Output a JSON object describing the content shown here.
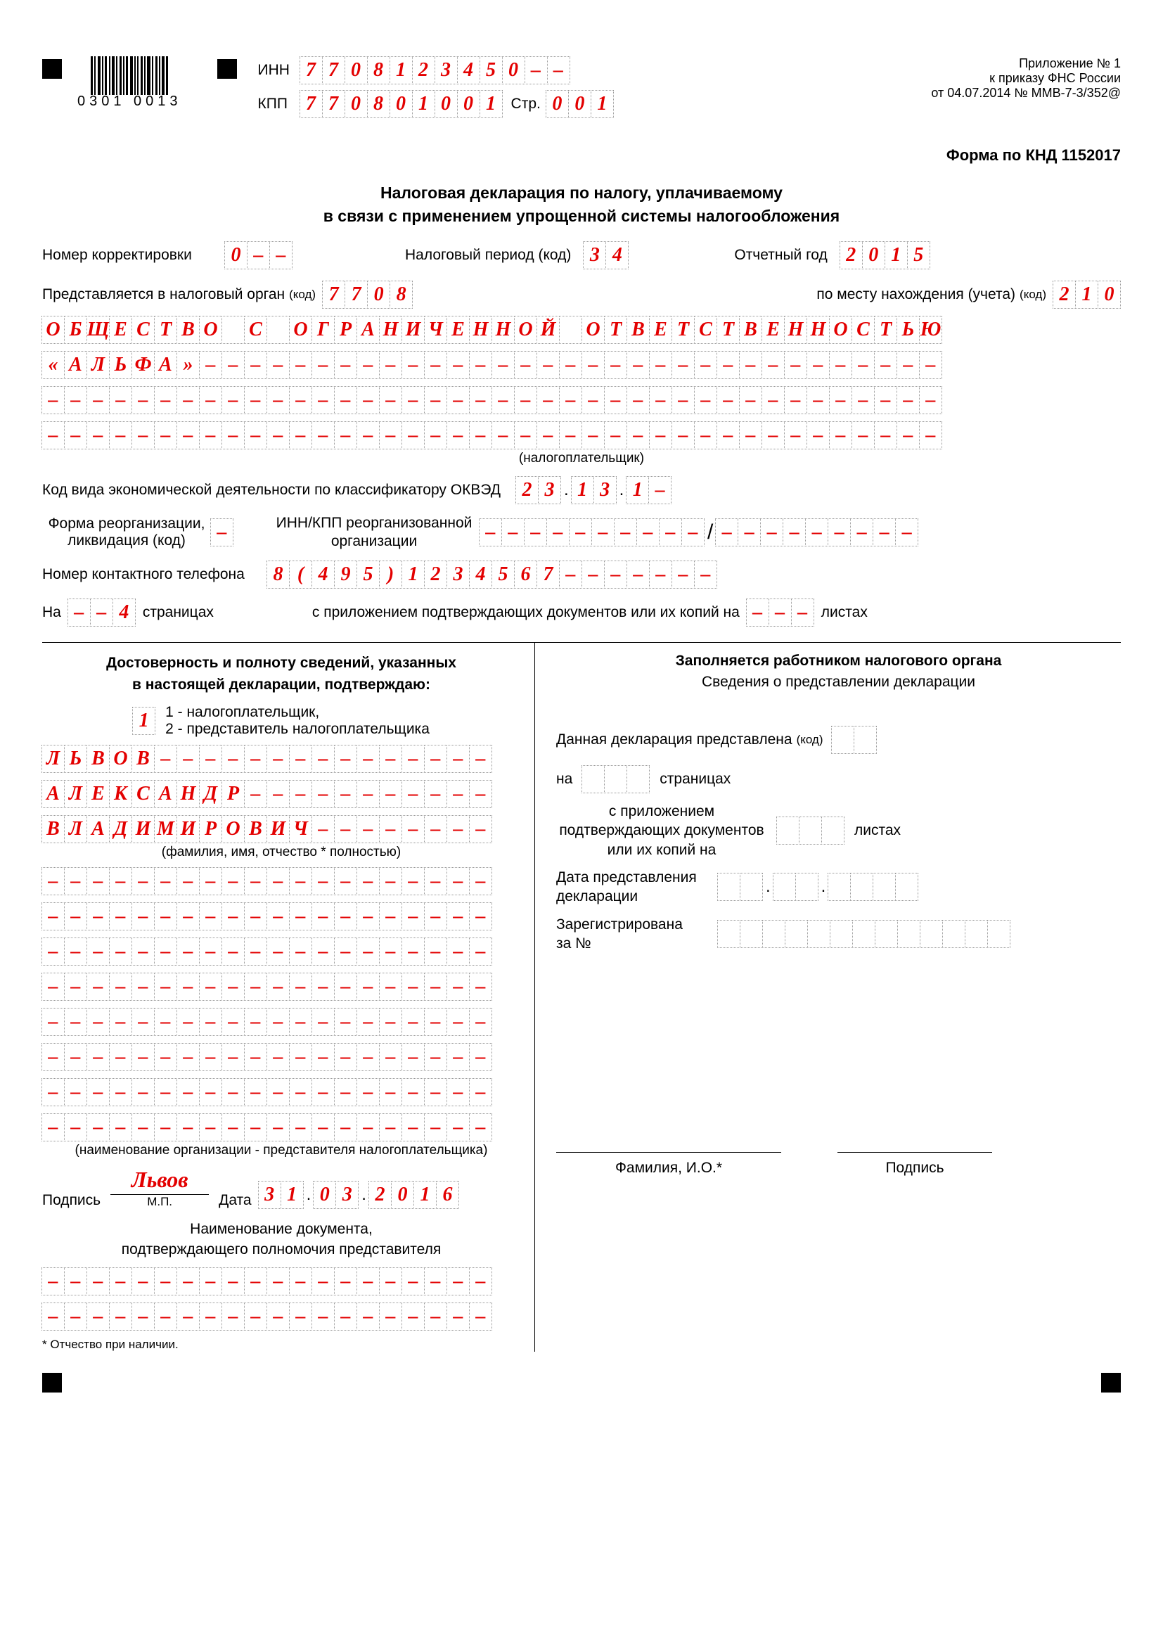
{
  "colors": {
    "red": "#e30000",
    "black": "#000000",
    "dashGray": "#999999"
  },
  "cell": {
    "width": 33,
    "height": 40,
    "borderStyle": "dotted",
    "font": "Times New Roman italic bold 28px"
  },
  "header": {
    "barcode_digits": "0301 0013",
    "inn_label": "ИНН",
    "inn": "7708123450--",
    "kpp_label": "КПП",
    "kpp": "770801001",
    "page_label": "Стр.",
    "page": "001",
    "appendix": [
      "Приложение № 1",
      "к приказу ФНС России",
      "от 04.07.2014 № ММВ-7-3/352@"
    ]
  },
  "form_code_label": "Форма по КНД 1152017",
  "title_l1": "Налоговая декларация по налогу, уплачиваемому",
  "title_l2": "в связи с применением упрощенной системы налогообложения",
  "row_corr": {
    "label": "Номер корректировки",
    "value": "0--"
  },
  "row_period": {
    "label": "Налоговый период (код)",
    "value": "34"
  },
  "row_year": {
    "label": "Отчетный год",
    "value": "2015"
  },
  "row_organ": {
    "label": "Представляется в налоговый орган",
    "sub": "(код)",
    "value": "7708",
    "label2": "по месту нахождения (учета)",
    "sub2": "(код)",
    "value2": "210"
  },
  "org_name": {
    "line1": "ОБЩЕСТВО С ОГРАНИЧЕННОЙ ОТВЕТСТВЕННОСТЬЮ",
    "line2": "«АЛЬФА»---------------------------------",
    "line3": "----------------------------------------",
    "line4": "----------------------------------------",
    "caption": "(налогоплательщик)",
    "cells_per_line": 40
  },
  "okved": {
    "label": "Код вида экономической деятельности по классификатору ОКВЭД",
    "g1": "23",
    "g2": "13",
    "g3": "1-"
  },
  "reorg": {
    "label_l1": "Форма реорганизации,",
    "label_l2": "ликвидация (код)",
    "code": "-",
    "label2_l1": "ИНН/КПП реорганизованной",
    "label2_l2": "организации",
    "inn": "----------",
    "kpp": "---------"
  },
  "phone": {
    "label": "Номер контактного телефона",
    "value": "8(495)1234567-------"
  },
  "pages": {
    "na": "На",
    "value": "--4",
    "stranitsah": "страницах",
    "with_attach": "с приложением подтверждающих документов или их копий на",
    "sheets_value": "---",
    "listah": "листах"
  },
  "left_block": {
    "title_l1": "Достоверность и полноту сведений, указанных",
    "title_l2": "в настоящей декларации, подтверждаю:",
    "who_code": "1",
    "who1": "1 - налогоплательщик,",
    "who2": "2 - представитель налогоплательщика",
    "fio": {
      "l1": "ЛЬВОВ---------------",
      "l2": "АЛЕКСАНДР-----------",
      "l3": "ВЛАДИМИРОВИЧ--------",
      "caption": "(фамилия, имя, отчество * полностью)",
      "cells": 20
    },
    "org_rep_lines": 8,
    "org_rep_cells": 20,
    "org_rep_caption": "(наименование организации - представителя налогоплательщика)",
    "sign_label": "Подпись",
    "sign_value": "Львов",
    "mp": "М.П.",
    "date_label": "Дата",
    "date_d": "31",
    "date_m": "03",
    "date_y": "2016",
    "doc_title_l1": "Наименование документа,",
    "doc_title_l2": "подтверждающего полномочия представителя",
    "doc_lines": 2,
    "doc_cells": 20,
    "footnote": "* Отчество при наличии."
  },
  "right_block": {
    "title": "Заполняется работником налогового органа",
    "subtitle": "Сведения о представлении декларации",
    "row1": "Данная декларация представлена",
    "row1_sub": "(код)",
    "row1_cells": 2,
    "row2_na": "на",
    "row2_cells": 3,
    "row2_after": "страницах",
    "row3_l1": "с приложением",
    "row3_l2": "подтверждающих документов",
    "row3_l3": "или их копий на",
    "row3_cells": 3,
    "row3_after": "листах",
    "row4_l1": "Дата представления",
    "row4_l2": "декларации",
    "row5_l1": "Зарегистрирована",
    "row5_l2": "за №",
    "row5_cells": 13,
    "fio_label": "Фамилия, И.О.*",
    "sign_label": "Подпись"
  }
}
